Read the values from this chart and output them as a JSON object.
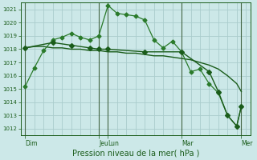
{
  "bg_color": "#cce8e8",
  "grid_color": "#aacccc",
  "line_color_dark": "#1a5c1a",
  "line_color_med": "#2a7a2a",
  "xlabel": "Pression niveau de la mer( hPa )",
  "ylim": [
    1011.5,
    1021.5
  ],
  "yticks": [
    1012,
    1013,
    1014,
    1015,
    1016,
    1017,
    1018,
    1019,
    1020,
    1021
  ],
  "xlim": [
    0,
    25
  ],
  "xtick_labels": [
    "Dim",
    "Jeu",
    "Lun",
    "Mar",
    "Mer"
  ],
  "xtick_pos": [
    0.5,
    8.5,
    9.5,
    17.5,
    24.0
  ],
  "vlines": [
    0.5,
    8.5,
    9.5,
    17.5,
    24.0
  ],
  "series1_x": [
    0.5,
    1.5,
    2.5,
    3.5,
    4.5,
    5.5,
    6.5,
    7.5,
    8.5,
    9.5,
    10.5,
    11.5,
    12.5,
    13.5,
    14.5,
    15.5,
    16.5,
    17.5,
    18.5,
    19.5,
    20.5,
    21.5,
    22.5,
    23.5,
    24.0
  ],
  "series1_y": [
    1015.2,
    1016.6,
    1017.9,
    1018.7,
    1018.9,
    1019.2,
    1018.9,
    1018.7,
    1019.0,
    1021.3,
    1020.7,
    1020.6,
    1020.5,
    1020.2,
    1018.7,
    1018.1,
    1018.6,
    1017.8,
    1016.3,
    1016.5,
    1015.4,
    1014.7,
    1013.0,
    1012.2,
    1013.7
  ],
  "series2_x": [
    0.5,
    1.5,
    2.5,
    3.5,
    4.5,
    5.5,
    6.5,
    7.5,
    8.5,
    9.5,
    10.5,
    11.5,
    12.5,
    13.5,
    14.5,
    15.5,
    16.5,
    17.5,
    18.5,
    19.5,
    20.5,
    21.5,
    22.5,
    23.5,
    24.0
  ],
  "series2_y": [
    1018.1,
    1018.2,
    1018.2,
    1018.1,
    1018.1,
    1018.0,
    1018.0,
    1017.9,
    1017.9,
    1017.8,
    1017.8,
    1017.7,
    1017.7,
    1017.6,
    1017.5,
    1017.5,
    1017.4,
    1017.3,
    1017.2,
    1017.0,
    1016.8,
    1016.5,
    1016.0,
    1015.4,
    1014.8
  ],
  "series3_x": [
    0.5,
    3.5,
    5.5,
    7.5,
    8.5,
    9.5,
    13.5,
    17.5,
    20.5,
    21.5,
    22.5,
    23.5,
    24.0
  ],
  "series3_y": [
    1018.1,
    1018.5,
    1018.3,
    1018.1,
    1018.0,
    1018.0,
    1017.8,
    1017.8,
    1016.3,
    1014.8,
    1013.0,
    1012.2,
    1013.7
  ],
  "figsize": [
    3.2,
    2.0
  ],
  "dpi": 100
}
